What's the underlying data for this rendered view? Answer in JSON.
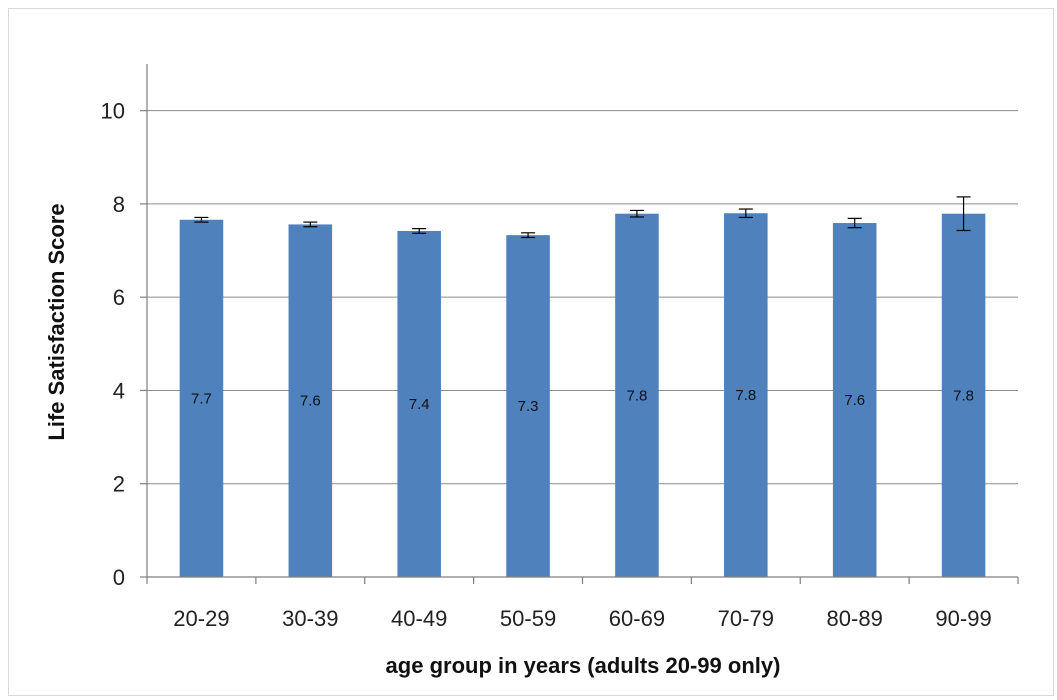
{
  "chart_data": {
    "type": "bar",
    "title": "",
    "xlabel": "age group in years (adults 20-99 only)",
    "ylabel": "Life Satisfaction Score",
    "categories": [
      "20-29",
      "30-39",
      "40-49",
      "50-59",
      "60-69",
      "70-79",
      "80-89",
      "90-99"
    ],
    "values": [
      7.66,
      7.56,
      7.42,
      7.33,
      7.79,
      7.8,
      7.59,
      7.79
    ],
    "data_labels": [
      "7.7",
      "7.6",
      "7.4",
      "7.3",
      "7.8",
      "7.8",
      "7.6",
      "7.8"
    ],
    "error_bars": [
      0.05,
      0.05,
      0.05,
      0.05,
      0.07,
      0.09,
      0.1,
      0.36
    ],
    "ylim": [
      0,
      11
    ],
    "yticks": [
      0,
      2,
      4,
      6,
      8,
      10
    ],
    "ytick_labels": [
      "0",
      "2",
      "4",
      "6",
      "8",
      "10"
    ],
    "grid": true,
    "legend": "none",
    "colors": {
      "bar": "#4f81bd",
      "grid": "#8c8c8c",
      "axis": "#7f7f7f",
      "error": "#000000"
    }
  }
}
